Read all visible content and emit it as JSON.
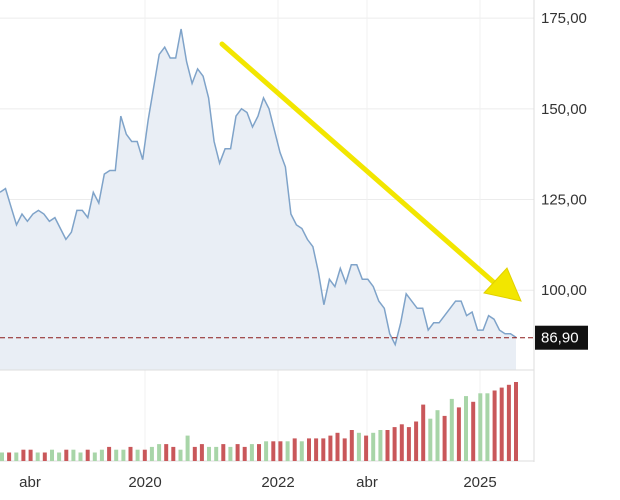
{
  "chart_data": [
    {
      "type": "area",
      "y_ticks": [
        175,
        150,
        125,
        100
      ],
      "y_tick_labels": [
        "175,00",
        "150,00",
        "125,00",
        "100,00"
      ],
      "ylim": [
        78,
        180
      ],
      "last_value": 86.9,
      "last_value_label": "86,90",
      "grid": true,
      "colors": {
        "line": "#7fa3c9",
        "fill": "#e9eef5",
        "reference_line": "#8b1a1a",
        "label_bg": "#111111",
        "arrow": "#f2e600"
      },
      "series": [
        {
          "values": [
            127,
            128,
            123,
            118,
            121,
            119,
            121,
            122,
            121,
            119,
            120,
            117,
            114,
            116,
            122,
            122,
            120,
            127,
            124,
            132,
            133,
            133,
            148,
            143,
            141,
            141,
            136,
            147,
            156,
            165,
            167,
            164,
            164,
            172,
            163,
            157,
            161,
            159,
            153,
            141,
            135,
            139,
            139,
            148,
            150,
            149,
            145,
            148,
            153,
            150,
            144,
            138,
            134,
            121,
            118,
            117,
            114,
            112,
            105,
            96,
            103,
            101,
            106,
            102,
            107,
            107,
            103,
            103,
            101,
            97,
            95,
            88,
            85,
            91,
            99,
            97,
            95,
            95,
            89,
            91,
            91,
            93,
            95,
            97,
            97,
            93,
            94,
            89,
            89,
            93,
            92,
            89,
            88,
            88,
            87
          ]
        }
      ]
    },
    {
      "type": "bar",
      "x_tick_labels": [
        "abr",
        "2020",
        "2022",
        "abr",
        "2025"
      ],
      "colors": {
        "up": "#a8d5a8",
        "down": "#c9575a"
      },
      "series": [
        {
          "values": [
            3,
            3,
            3,
            4,
            4,
            3,
            3,
            4,
            3,
            4,
            4,
            3,
            4,
            3,
            4,
            5,
            4,
            4,
            5,
            4,
            4,
            5,
            6,
            6,
            5,
            4,
            9,
            5,
            6,
            5,
            5,
            6,
            5,
            6,
            5,
            6,
            6,
            7,
            7,
            7,
            7,
            8,
            7,
            8,
            8,
            8,
            9,
            10,
            8,
            11,
            10,
            9,
            10,
            11,
            11,
            12,
            13,
            12,
            14,
            20,
            15,
            18,
            16,
            22,
            19,
            23,
            21,
            24,
            24,
            25,
            26,
            27,
            28
          ],
          "up": [
            1,
            0,
            1,
            0,
            0,
            1,
            0,
            1,
            1,
            0,
            1,
            1,
            0,
            1,
            1,
            0,
            1,
            1,
            0,
            1,
            0,
            1,
            1,
            0,
            0,
            1,
            1,
            0,
            0,
            1,
            1,
            0,
            1,
            0,
            0,
            1,
            0,
            1,
            0,
            0,
            1,
            0,
            1,
            0,
            0,
            0,
            0,
            0,
            0,
            0,
            1,
            0,
            1,
            1,
            0,
            0,
            0,
            0,
            0,
            0,
            1,
            1,
            0,
            1,
            0,
            1,
            0,
            1,
            1,
            0,
            0,
            0,
            0
          ]
        }
      ]
    }
  ]
}
